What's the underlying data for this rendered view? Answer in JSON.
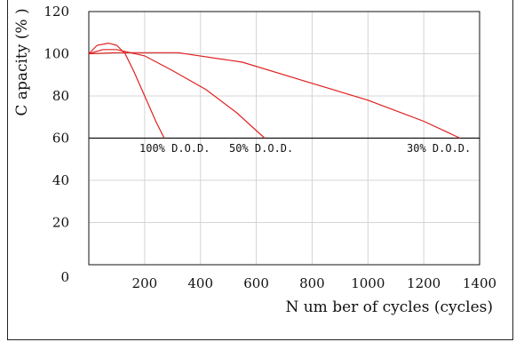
{
  "chart_data": {
    "type": "line",
    "title": "",
    "xlabel": "N um ber of cycles (cycles)",
    "ylabel": "C apacity (% )",
    "xlim": [
      0,
      1400
    ],
    "ylim": [
      0,
      120
    ],
    "x_ticks": [
      "200",
      "400",
      "600",
      "800",
      "1000",
      "1200",
      "1400"
    ],
    "y_ticks": [
      "0",
      "20",
      "40",
      "60",
      "80",
      "100",
      "120"
    ],
    "grid": true,
    "reference_line": 60,
    "series": [
      {
        "label": "100% D.O.D.",
        "color": "#e02020",
        "x": [
          0,
          30,
          70,
          100,
          130,
          160,
          200,
          240,
          270
        ],
        "y": [
          100,
          104,
          105,
          104,
          100,
          92,
          80,
          68,
          60
        ]
      },
      {
        "label": "50% D.O.D.",
        "color": "#e02020",
        "x": [
          0,
          50,
          100,
          200,
          300,
          420,
          530,
          630
        ],
        "y": [
          100,
          102,
          102,
          99,
          92,
          83,
          72,
          60
        ]
      },
      {
        "label": "30% D.O.D.",
        "color": "#e02020",
        "x": [
          0,
          100,
          320,
          550,
          800,
          1000,
          1200,
          1330
        ],
        "y": [
          100,
          100.5,
          100.5,
          96,
          86,
          78,
          68,
          60
        ]
      }
    ]
  }
}
